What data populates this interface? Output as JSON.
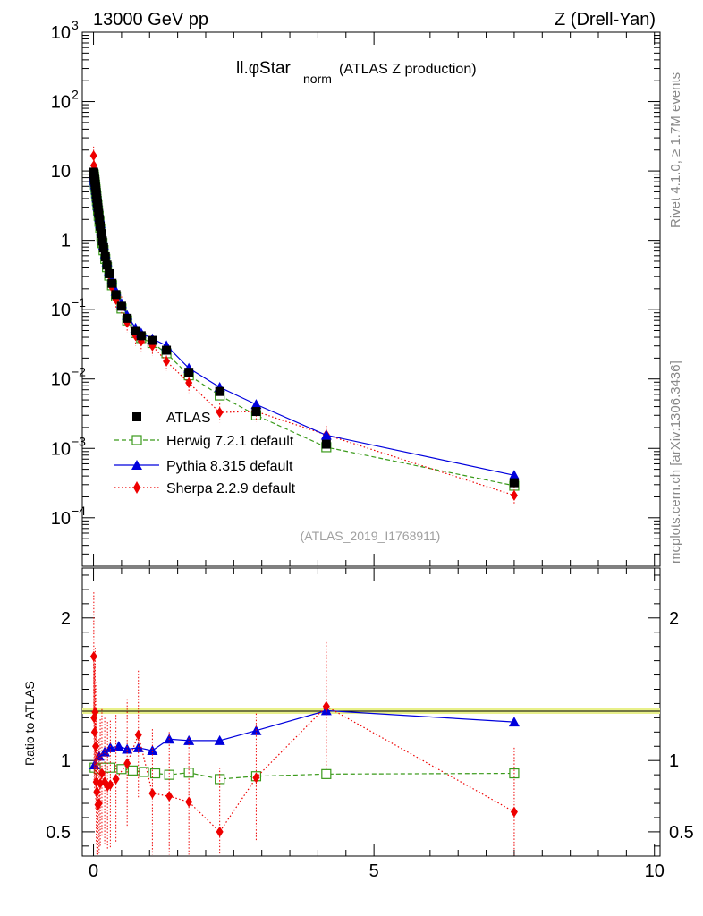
{
  "header": {
    "energy_label": "13000 GeV pp",
    "process_label": "Z (Drell-Yan)",
    "title_main": "ll.φStar",
    "title_sub": "norm",
    "title_rest": "(ATLAS Z production)",
    "analysis_id": "(ATLAS_2019_I1768911)"
  },
  "side_labels": {
    "rivet": "Rivet 4.1.0, ≥ 1.7M events",
    "mcplots": "mcplots.cern.ch [arXiv:1306.3436]"
  },
  "legend": [
    {
      "key": "atlas",
      "label": "ATLAS"
    },
    {
      "key": "herwig",
      "label": "Herwig 7.2.1 default"
    },
    {
      "key": "pythia",
      "label": "Pythia 8.315 default"
    },
    {
      "key": "sherpa",
      "label": "Sherpa 2.2.9 default"
    }
  ],
  "ratio_axis": {
    "ylabel": "Ratio to ATLAS"
  },
  "colors": {
    "atlas": "#000000",
    "herwig": "#3a9a1a",
    "pythia": "#0000dd",
    "sherpa": "#ee0000",
    "band": "#e8f08a",
    "band_line": "#7cc800"
  },
  "chart_data": {
    "type": "scatter",
    "title": "ll.φStar_norm (ATLAS Z production)",
    "xlabel": "",
    "xlim": [
      -0.2,
      10.1
    ],
    "xticks": [
      0,
      5,
      10
    ],
    "main_ylim": [
      2e-05,
      1000
    ],
    "main_yscale": "log",
    "main_yticks": [
      "10^{-4}",
      "10^{-3}",
      "10^{-2}",
      "10^{-1}",
      "1",
      "10",
      "10^{2}",
      "10^{3}"
    ],
    "ratio_ylim": [
      0.33,
      2.35
    ],
    "ratio_yticks": [
      0.5,
      1,
      2
    ],
    "x": [
      0.002,
      0.006,
      0.01,
      0.014,
      0.018,
      0.022,
      0.027,
      0.032,
      0.038,
      0.045,
      0.052,
      0.06,
      0.07,
      0.08,
      0.092,
      0.106,
      0.12,
      0.14,
      0.16,
      0.18,
      0.21,
      0.24,
      0.28,
      0.33,
      0.4,
      0.5,
      0.6,
      0.75,
      0.85,
      1.05,
      1.3,
      1.7,
      2.25,
      2.9,
      4.15,
      7.5
    ],
    "series": [
      {
        "name": "ATLAS",
        "values": [
          9.6,
          9.3,
          8.8,
          8.3,
          7.9,
          7.4,
          6.9,
          6.4,
          5.8,
          5.2,
          4.6,
          4.0,
          3.45,
          2.95,
          2.45,
          2.0,
          1.6,
          1.25,
          0.98,
          0.78,
          0.58,
          0.44,
          0.33,
          0.24,
          0.165,
          0.112,
          0.075,
          0.05,
          0.042,
          0.036,
          0.026,
          0.0125,
          0.0066,
          0.0034,
          0.00115,
          0.00032
        ]
      },
      {
        "name": "Herwig 7.2.1 default",
        "values": [
          9.0,
          8.7,
          8.2,
          7.7,
          7.3,
          6.9,
          6.4,
          5.9,
          5.4,
          4.8,
          4.3,
          3.7,
          3.2,
          2.7,
          2.25,
          1.85,
          1.48,
          1.15,
          0.91,
          0.72,
          0.54,
          0.41,
          0.31,
          0.225,
          0.155,
          0.104,
          0.07,
          0.046,
          0.039,
          0.033,
          0.0235,
          0.0113,
          0.0058,
          0.003,
          0.00104,
          0.00029
        ]
      },
      {
        "name": "Pythia 8.315 default",
        "values": [
          9.3,
          8.9,
          8.5,
          8.0,
          7.6,
          7.2,
          6.8,
          6.3,
          5.8,
          5.3,
          4.7,
          4.1,
          3.6,
          3.1,
          2.6,
          2.15,
          1.73,
          1.36,
          1.07,
          0.85,
          0.64,
          0.49,
          0.365,
          0.27,
          0.185,
          0.123,
          0.083,
          0.054,
          0.046,
          0.038,
          0.0303,
          0.0143,
          0.0076,
          0.0043,
          0.00155,
          0.00041
        ]
      },
      {
        "name": "Sherpa 2.2.9 default",
        "values": [
          16.6,
          12.0,
          10.6,
          7.6,
          8.7,
          7.0,
          8.8,
          5.3,
          4.9,
          3.6,
          3.7,
          2.9,
          2.4,
          2.7,
          1.95,
          1.7,
          1.45,
          1.1,
          0.85,
          0.72,
          0.52,
          0.4,
          0.32,
          0.21,
          0.14,
          0.115,
          0.065,
          0.042,
          0.035,
          0.03,
          0.018,
          0.0088,
          0.0033,
          0.0034,
          0.00157,
          0.00021
        ]
      }
    ],
    "ratios": [
      {
        "name": "Herwig 7.2.1 default",
        "x": [
          0.02,
          0.1,
          0.2,
          0.3,
          0.5,
          0.7,
          0.9,
          1.1,
          1.35,
          1.7,
          2.25,
          2.9,
          4.15,
          7.5
        ],
        "values": [
          0.95,
          0.94,
          0.95,
          0.95,
          0.94,
          0.93,
          0.92,
          0.91,
          0.9,
          0.915,
          0.87,
          0.89,
          0.905,
          0.91
        ]
      },
      {
        "name": "Pythia 8.315 default",
        "x": [
          0.02,
          0.1,
          0.2,
          0.3,
          0.45,
          0.6,
          0.8,
          1.05,
          1.35,
          1.7,
          2.25,
          2.9,
          4.15,
          7.5
        ],
        "values": [
          0.97,
          1.03,
          1.06,
          1.09,
          1.1,
          1.08,
          1.09,
          1.07,
          1.15,
          1.14,
          1.14,
          1.21,
          1.35,
          1.27
        ]
      },
      {
        "name": "Sherpa 2.2.9 default",
        "x": [
          0.005,
          0.01,
          0.02,
          0.03,
          0.04,
          0.05,
          0.06,
          0.08,
          0.1,
          0.12,
          0.15,
          0.2,
          0.25,
          0.3,
          0.4,
          0.6,
          0.8,
          1.05,
          1.35,
          1.7,
          2.25,
          2.9,
          4.15,
          7.5
        ],
        "values": [
          1.73,
          1.3,
          1.2,
          1.34,
          1.1,
          0.85,
          0.78,
          0.69,
          0.7,
          0.84,
          0.91,
          0.85,
          0.82,
          0.83,
          0.87,
          0.98,
          1.18,
          0.77,
          0.75,
          0.71,
          0.5,
          0.88,
          1.38,
          0.64
        ]
      }
    ]
  }
}
